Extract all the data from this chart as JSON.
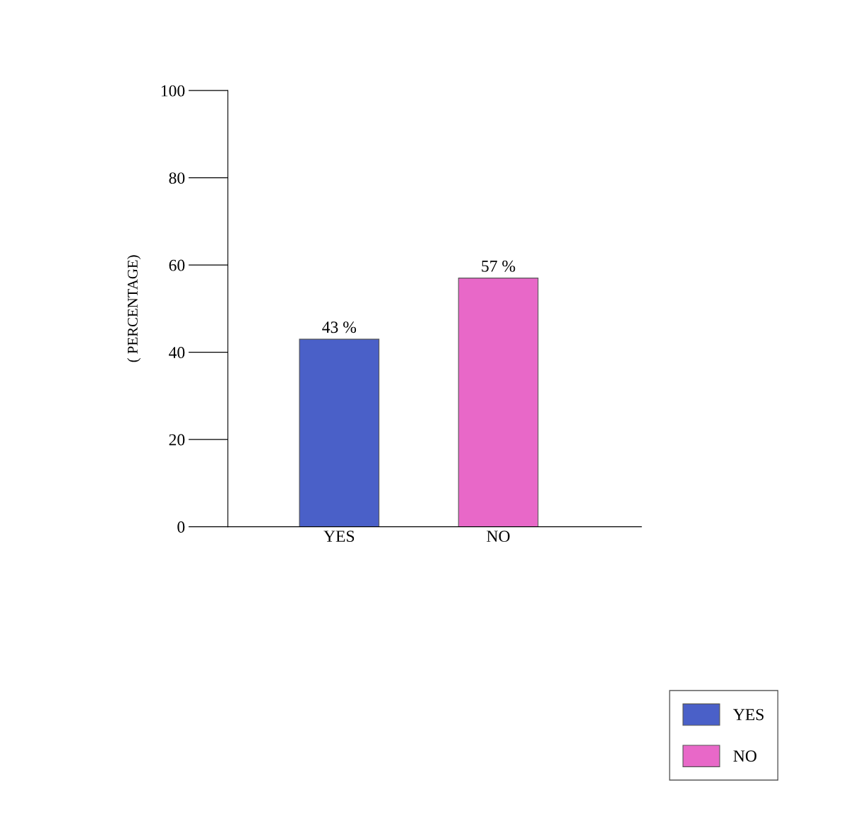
{
  "chart_data": {
    "type": "bar",
    "ylabel": "( PERCENTAGE)",
    "categories": [
      "YES",
      "NO"
    ],
    "series": [
      {
        "name": "YES",
        "color": "#4a60c8",
        "values": [
          43,
          null
        ],
        "value_labels": [
          "43 %",
          null
        ]
      },
      {
        "name": "NO",
        "color": "#e868c8",
        "values": [
          null,
          57
        ],
        "value_labels": [
          null,
          "57 %"
        ]
      }
    ],
    "ylim": [
      0,
      100
    ],
    "yticks": [
      0,
      20,
      40,
      60,
      80,
      100
    ],
    "grid": false,
    "legend": "bottom right"
  }
}
